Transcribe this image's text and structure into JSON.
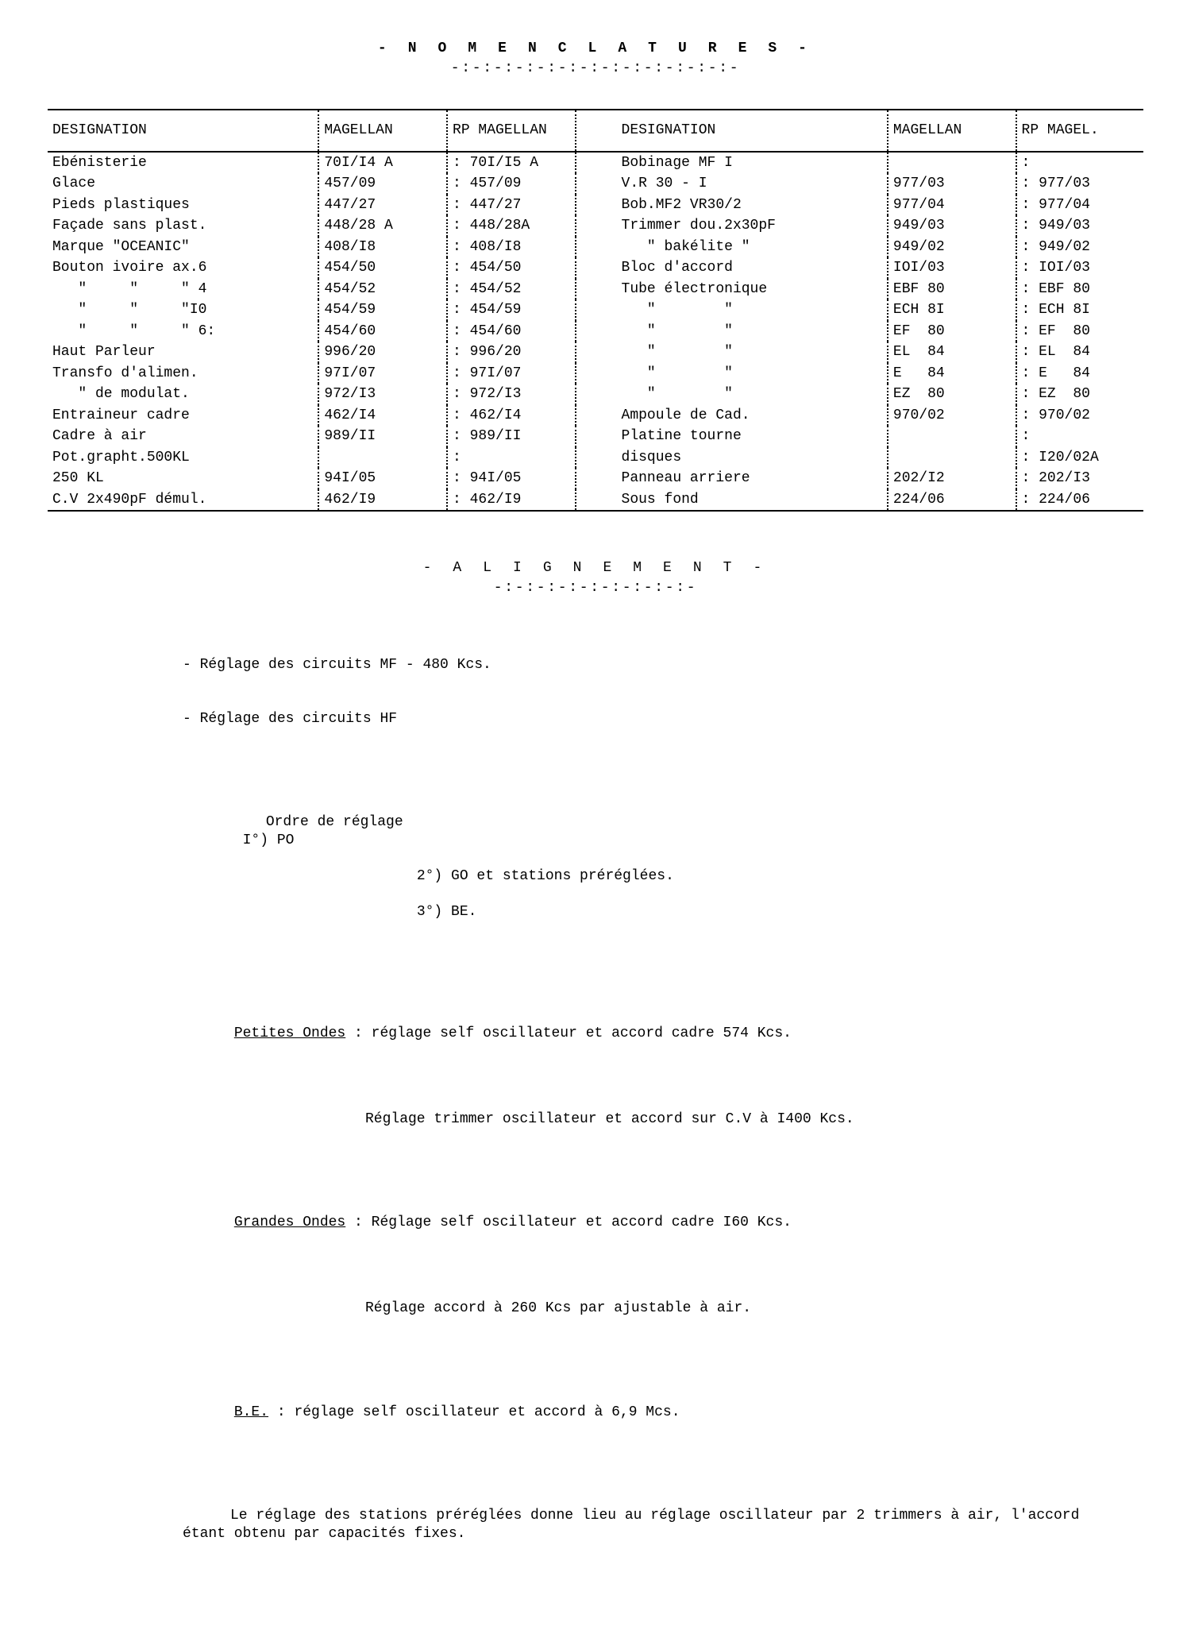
{
  "title": "- N O M E N C L A T U R E S -",
  "title_underline": "-:-:-:-:-:-:-:-:-:-:-:-:-:-",
  "table": {
    "headers": {
      "designation": "DESIGNATION",
      "magellan": "MAGELLAN",
      "rp_magellan": "RP MAGELLAN",
      "rp_magel_short": "RP MAGEL."
    },
    "left": [
      {
        "d": "Ebénisterie",
        "m": "70I/I4 A",
        "r": "70I/I5 A"
      },
      {
        "d": "Glace",
        "m": "457/09",
        "r": "457/09"
      },
      {
        "d": "Pieds plastiques",
        "m": "447/27",
        "r": "447/27"
      },
      {
        "d": "Façade sans plast.",
        "m": "448/28 A",
        "r": "448/28A"
      },
      {
        "d": "Marque \"OCEANIC\"",
        "m": "408/I8",
        "r": "408/I8"
      },
      {
        "d": "Bouton ivoire ax.6",
        "m": "454/50",
        "r": "454/50"
      },
      {
        "d": "   \"     \"     \" 4",
        "m": "454/52",
        "r": "454/52"
      },
      {
        "d": "   \"     \"     \"I0",
        "m": "454/59",
        "r": "454/59"
      },
      {
        "d": "   \"     \"     \" 6:",
        "m": "454/60",
        "r": "454/60"
      },
      {
        "d": "Haut Parleur",
        "m": "996/20",
        "r": "996/20"
      },
      {
        "d": "Transfo d'alimen.",
        "m": "97I/07",
        "r": "97I/07"
      },
      {
        "d": "   \" de modulat.",
        "m": "972/I3",
        "r": "972/I3"
      },
      {
        "d": "Entraineur cadre",
        "m": "462/I4",
        "r": "462/I4"
      },
      {
        "d": "Cadre à air",
        "m": "989/II",
        "r": "989/II"
      },
      {
        "d": "Pot.grapht.500KL",
        "m": "",
        "r": ""
      },
      {
        "d": "250 KL",
        "m": "94I/05",
        "r": "94I/05"
      },
      {
        "d": "C.V 2x490pF démul.",
        "m": "462/I9",
        "r": "462/I9"
      }
    ],
    "right": [
      {
        "d": "Bobinage MF I",
        "m": "",
        "r": ""
      },
      {
        "d": "V.R 30 - I",
        "m": "977/03",
        "r": "977/03"
      },
      {
        "d": "Bob.MF2 VR30/2",
        "m": "977/04",
        "r": "977/04"
      },
      {
        "d": "Trimmer dou.2x30pF",
        "m": "949/03",
        "r": "949/03"
      },
      {
        "d": "   \" bakélite \"",
        "m": "949/02",
        "r": "949/02"
      },
      {
        "d": "Bloc d'accord",
        "m": "IOI/03",
        "r": "IOI/03"
      },
      {
        "d": "Tube électronique",
        "m": "EBF 80",
        "r": "EBF 80"
      },
      {
        "d": "   \"        \"",
        "m": "ECH 8I",
        "r": "ECH 8I"
      },
      {
        "d": "   \"        \"",
        "m": "EF  80",
        "r": "EF  80"
      },
      {
        "d": "   \"        \"",
        "m": "EL  84",
        "r": "EL  84"
      },
      {
        "d": "   \"        \"",
        "m": "E   84",
        "r": "E   84"
      },
      {
        "d": "   \"        \"",
        "m": "EZ  80",
        "r": "EZ  80"
      },
      {
        "d": "Ampoule de Cad.",
        "m": "970/02",
        "r": "970/02"
      },
      {
        "d": "Platine tourne",
        "m": "",
        "r": ""
      },
      {
        "d": "disques",
        "m": "",
        "r": "I20/02A"
      },
      {
        "d": "Panneau arriere",
        "m": "202/I2",
        "r": "202/I3"
      },
      {
        "d": "Sous fond",
        "m": "224/06",
        "r": "224/06"
      }
    ]
  },
  "alignment": {
    "title": "- A L I G N E M E N T -",
    "title_underline": "-:-:-:-:-:-:-:-:-:-",
    "l1": "- Réglage des circuits MF - 480 Kcs.",
    "l2": "- Réglage des circuits HF",
    "order_label": "Ordre de réglage",
    "o1": "I°) PO",
    "o2": "2°) GO et stations préréglées.",
    "o3": "3°) BE.",
    "po_label": "Petites Ondes",
    "po_1": "réglage self oscillateur et accord cadre 574 Kcs.",
    "po_2": "Réglage trimmer oscillateur et accord sur C.V à I400 Kcs.",
    "go_label": "Grandes Ondes",
    "go_1": "Réglage self oscillateur et accord cadre I60 Kcs.",
    "go_2": "Réglage accord à 260 Kcs par ajustable à air.",
    "be_label": "B.E.",
    "be_1": "réglage self oscillateur et accord à 6,9 Mcs.",
    "final": "Le réglage des stations préréglées donne lieu au réglage oscillateur par 2 trimmers à air, l'accord étant obtenu par capacités fixes."
  },
  "style": {
    "font_family": "Courier New",
    "font_size_pt": 14,
    "text_color": "#000000",
    "background_color": "#ffffff",
    "rule_color": "#000000",
    "separator_style": "dotted"
  }
}
